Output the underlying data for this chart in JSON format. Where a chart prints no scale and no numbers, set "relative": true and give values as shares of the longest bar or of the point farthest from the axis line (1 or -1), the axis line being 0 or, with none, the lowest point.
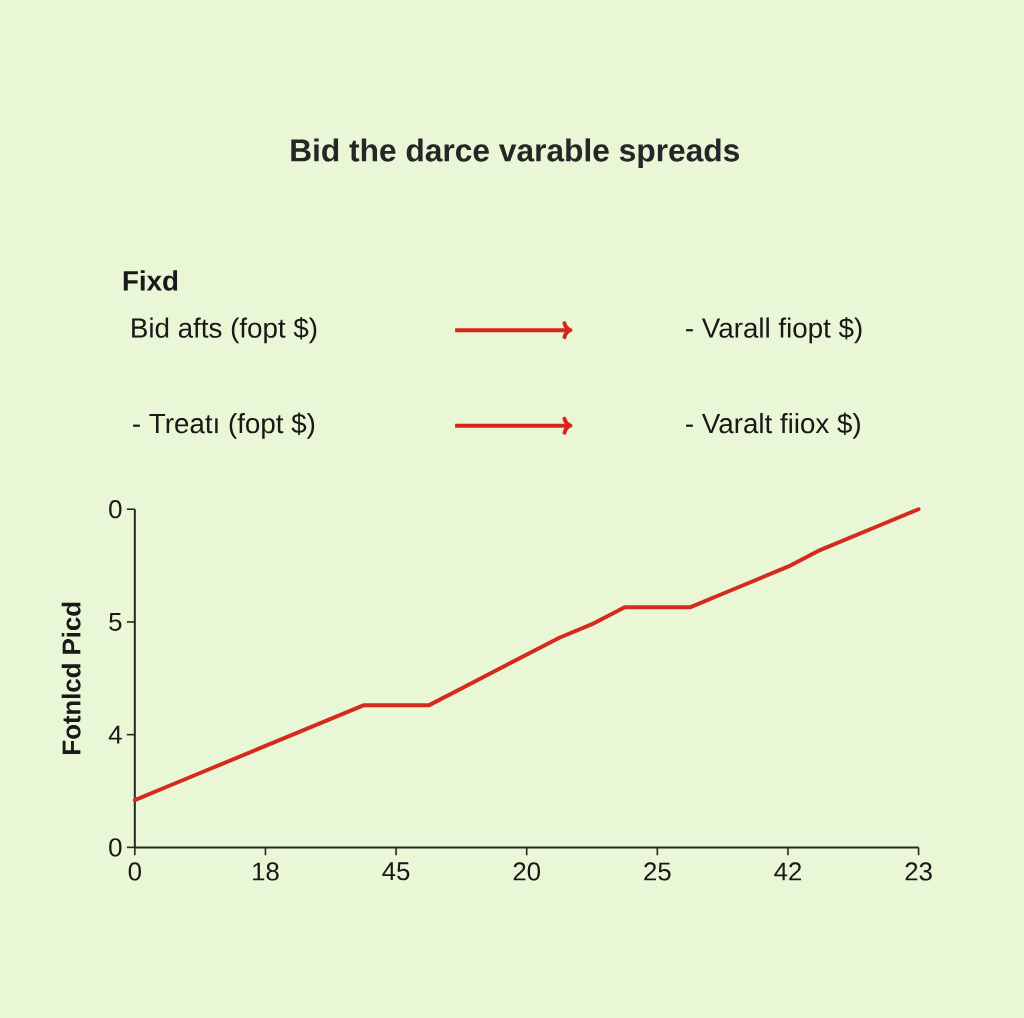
{
  "chart_data": {
    "type": "line",
    "title": "Bid the darce varable spreads",
    "ylabel": "Fotnlcd Picd",
    "annotations": [
      "Fixd",
      "Bid afts (fopt $)",
      "- Varall fiopt $)",
      "- Treatı (fopt $)",
      "- Varalt fiiox $)",
      "0",
      "5",
      "4",
      "0"
    ],
    "categories": [
      "0",
      null,
      null,
      null,
      "18",
      null,
      null,
      null,
      "45",
      null,
      null,
      null,
      "20",
      null,
      null,
      null,
      "25",
      null,
      null,
      null,
      "42",
      null,
      null,
      null,
      "23"
    ],
    "values": [
      0.14,
      0.18,
      0.22,
      0.26,
      0.3,
      0.34,
      0.38,
      0.42,
      0.42,
      0.42,
      0.47,
      0.52,
      0.57,
      0.62,
      0.66,
      0.71,
      0.71,
      0.71,
      0.75,
      0.79,
      0.83,
      0.88,
      0.92,
      0.96,
      1
    ],
    "relative": true,
    "color": "#d42b1f",
    "line_style": "solid",
    "marker": "none"
  }
}
